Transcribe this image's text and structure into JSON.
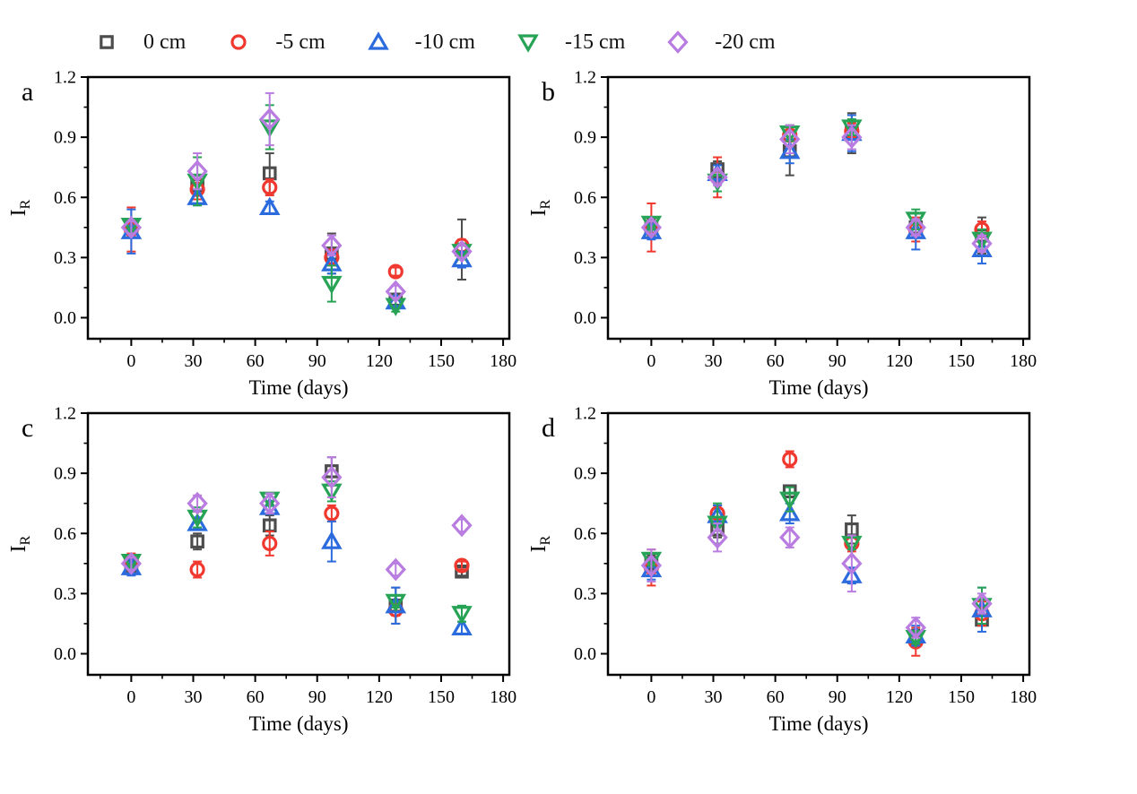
{
  "legend": {
    "items": [
      {
        "label": "0 cm",
        "marker": "square",
        "color": "#4d4d4d"
      },
      {
        "label": "-5 cm",
        "marker": "circle",
        "color": "#f0382e"
      },
      {
        "label": "-10 cm",
        "marker": "triangle-up",
        "color": "#2b6bdd"
      },
      {
        "label": "-15 cm",
        "marker": "triangle-down",
        "color": "#27a356"
      },
      {
        "label": "-20 cm",
        "marker": "diamond",
        "color": "#b97ce0"
      }
    ]
  },
  "axes": {
    "xlabel": "Time (days)",
    "ylabel_main": "I",
    "ylabel_sub": "R",
    "x_ticks": [
      0,
      30,
      60,
      90,
      120,
      150,
      180
    ],
    "x_minor_ticks": [
      -15,
      15,
      45,
      75,
      105,
      135,
      165
    ],
    "y_ticks": [
      "0.0",
      "0.3",
      "0.6",
      "0.9",
      "1.2"
    ],
    "y_tick_values": [
      0,
      0.3,
      0.6,
      0.9,
      1.2
    ],
    "y_minor_ticks": [
      0.15,
      0.45,
      0.75,
      1.05
    ],
    "xlim": [
      -21,
      183
    ],
    "ylim": [
      -0.105,
      1.2
    ],
    "grid": false
  },
  "chart_data": [
    {
      "type": "scatter",
      "panel_label": "a",
      "x": [
        0,
        32,
        67,
        97,
        128,
        160
      ],
      "series": [
        {
          "name": "0 cm",
          "marker": "square",
          "color": "#4d4d4d",
          "y": [
            0.45,
            0.66,
            0.72,
            0.32,
            0.09,
            0.34
          ],
          "err": [
            0.04,
            0.05,
            0.1,
            0.1,
            0.03,
            0.15
          ]
        },
        {
          "name": "-5 cm",
          "marker": "circle",
          "color": "#f0382e",
          "y": [
            0.44,
            0.64,
            0.65,
            0.3,
            0.23,
            0.36
          ],
          "err": [
            0.11,
            0.05,
            0.04,
            0.04,
            0.02,
            0.03
          ]
        },
        {
          "name": "-10 cm",
          "marker": "triangle-up",
          "color": "#2b6bdd",
          "y": [
            0.43,
            0.6,
            0.55,
            0.27,
            0.08,
            0.29
          ],
          "err": [
            0.11,
            0.04,
            0.03,
            0.05,
            0.02,
            0.04
          ]
        },
        {
          "name": "-15 cm",
          "marker": "triangle-down",
          "color": "#27a356",
          "y": [
            0.46,
            0.68,
            0.95,
            0.17,
            0.06,
            0.33
          ],
          "err": [
            0.03,
            0.12,
            0.11,
            0.09,
            0.03,
            0.04
          ]
        },
        {
          "name": "-20 cm",
          "marker": "diamond",
          "color": "#b97ce0",
          "y": [
            0.45,
            0.73,
            0.99,
            0.36,
            0.13,
            0.33
          ],
          "err": [
            0.03,
            0.09,
            0.13,
            0.05,
            0.03,
            0.03
          ]
        }
      ]
    },
    {
      "type": "scatter",
      "panel_label": "b",
      "x": [
        0,
        32,
        67,
        97,
        128,
        160
      ],
      "series": [
        {
          "name": "0 cm",
          "marker": "square",
          "color": "#4d4d4d",
          "y": [
            0.45,
            0.74,
            0.83,
            0.92,
            0.45,
            0.41
          ],
          "err": [
            0.04,
            0.04,
            0.12,
            0.1,
            0.04,
            0.09
          ]
        },
        {
          "name": "-5 cm",
          "marker": "circle",
          "color": "#f0382e",
          "y": [
            0.45,
            0.7,
            0.91,
            0.93,
            0.44,
            0.44
          ],
          "err": [
            0.12,
            0.1,
            0.05,
            0.04,
            0.06,
            0.04
          ]
        },
        {
          "name": "-10 cm",
          "marker": "triangle-up",
          "color": "#2b6bdd",
          "y": [
            0.43,
            0.72,
            0.83,
            0.92,
            0.43,
            0.34
          ],
          "err": [
            0.04,
            0.04,
            0.06,
            0.09,
            0.09,
            0.07
          ]
        },
        {
          "name": "-15 cm",
          "marker": "triangle-down",
          "color": "#27a356",
          "y": [
            0.47,
            0.68,
            0.92,
            0.95,
            0.49,
            0.39
          ],
          "err": [
            0.03,
            0.05,
            0.04,
            0.04,
            0.05,
            0.05
          ]
        },
        {
          "name": "-20 cm",
          "marker": "diamond",
          "color": "#b97ce0",
          "y": [
            0.45,
            0.7,
            0.89,
            0.9,
            0.45,
            0.37
          ],
          "err": [
            0.03,
            0.04,
            0.07,
            0.06,
            0.04,
            0.04
          ]
        }
      ]
    },
    {
      "type": "scatter",
      "panel_label": "c",
      "x": [
        0,
        32,
        67,
        97,
        128,
        160
      ],
      "series": [
        {
          "name": "0 cm",
          "marker": "square",
          "color": "#4d4d4d",
          "y": [
            0.44,
            0.56,
            0.64,
            0.91,
            0.24,
            0.41
          ],
          "err": [
            0.03,
            0.04,
            0.05,
            0.07,
            0.09,
            0.02
          ]
        },
        {
          "name": "-5 cm",
          "marker": "circle",
          "color": "#f0382e",
          "y": [
            0.46,
            0.42,
            0.55,
            0.7,
            0.22,
            0.44
          ],
          "err": [
            0.04,
            0.04,
            0.06,
            0.04,
            0.03,
            0.02
          ]
        },
        {
          "name": "-10 cm",
          "marker": "triangle-up",
          "color": "#2b6bdd",
          "y": [
            0.43,
            0.65,
            0.73,
            0.56,
            0.24,
            0.13
          ],
          "err": [
            0.04,
            0.03,
            0.03,
            0.1,
            0.09,
            0.03
          ]
        },
        {
          "name": "-15 cm",
          "marker": "triangle-down",
          "color": "#27a356",
          "y": [
            0.46,
            0.68,
            0.77,
            0.81,
            0.26,
            0.2
          ],
          "err": [
            0.03,
            0.05,
            0.03,
            0.05,
            0.03,
            0.04
          ]
        },
        {
          "name": "-20 cm",
          "marker": "diamond",
          "color": "#b97ce0",
          "y": [
            0.45,
            0.75,
            0.75,
            0.88,
            0.42,
            0.64
          ],
          "err": [
            0.03,
            0.04,
            0.05,
            0.1,
            0.03,
            0.03
          ]
        }
      ]
    },
    {
      "type": "scatter",
      "panel_label": "d",
      "x": [
        0,
        32,
        67,
        97,
        128,
        160
      ],
      "series": [
        {
          "name": "0 cm",
          "marker": "square",
          "color": "#4d4d4d",
          "y": [
            0.45,
            0.62,
            0.81,
            0.62,
            0.08,
            0.17
          ],
          "err": [
            0.04,
            0.04,
            0.03,
            0.07,
            0.04,
            0.03
          ]
        },
        {
          "name": "-5 cm",
          "marker": "circle",
          "color": "#f0382e",
          "y": [
            0.43,
            0.7,
            0.97,
            0.55,
            0.06,
            0.2
          ],
          "err": [
            0.09,
            0.04,
            0.04,
            0.04,
            0.07,
            0.06
          ]
        },
        {
          "name": "-10 cm",
          "marker": "triangle-up",
          "color": "#2b6bdd",
          "y": [
            0.42,
            0.69,
            0.7,
            0.39,
            0.09,
            0.22
          ],
          "err": [
            0.05,
            0.05,
            0.05,
            0.04,
            0.05,
            0.11
          ]
        },
        {
          "name": "-15 cm",
          "marker": "triangle-down",
          "color": "#27a356",
          "y": [
            0.47,
            0.65,
            0.77,
            0.55,
            0.08,
            0.24
          ],
          "err": [
            0.03,
            0.1,
            0.06,
            0.03,
            0.03,
            0.09
          ]
        },
        {
          "name": "-20 cm",
          "marker": "diamond",
          "color": "#b97ce0",
          "y": [
            0.44,
            0.58,
            0.58,
            0.45,
            0.13,
            0.25
          ],
          "err": [
            0.08,
            0.07,
            0.05,
            0.14,
            0.05,
            0.05
          ]
        }
      ]
    }
  ]
}
